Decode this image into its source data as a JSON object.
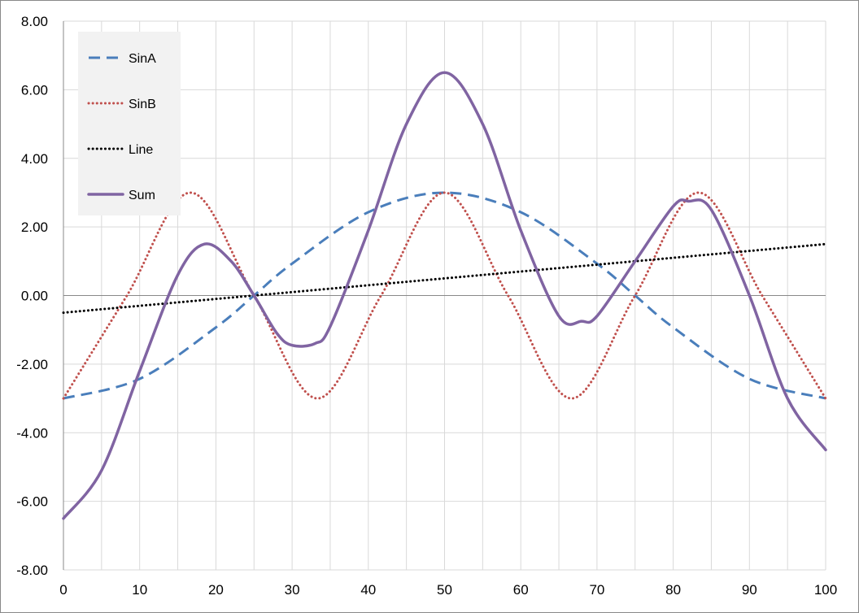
{
  "chart_data": {
    "type": "line",
    "x_range": [
      0,
      100
    ],
    "ylim": [
      -8,
      8
    ],
    "x_ticks": [
      0,
      10,
      20,
      30,
      40,
      50,
      60,
      70,
      80,
      90,
      100
    ],
    "x_tick_labels": [
      "0",
      "10",
      "20",
      "30",
      "40",
      "50",
      "60",
      "70",
      "80",
      "90",
      "100"
    ],
    "y_ticks": [
      8,
      6,
      4,
      2,
      0,
      -2,
      -4,
      -6,
      -8
    ],
    "y_tick_labels": [
      "8.00",
      "6.00",
      "4.00",
      "2.00",
      "0.00",
      "-2.00",
      "-4.00",
      "-6.00",
      "-8.00"
    ],
    "grid": {
      "major_x": true,
      "major_y": true
    },
    "legend_position": "top-left",
    "series": [
      {
        "name": "SinA",
        "color": "#4a7ebb",
        "style": "dashed",
        "x": [
          0,
          10,
          20,
          25,
          30,
          40,
          50,
          60,
          70,
          75,
          80,
          90,
          100
        ],
        "y": [
          -3.0,
          -2.43,
          -0.93,
          0.0,
          0.93,
          2.43,
          3.0,
          2.43,
          0.93,
          0.0,
          -0.93,
          -2.43,
          -3.0
        ]
      },
      {
        "name": "SinB",
        "color": "#c0504d",
        "style": "dotted",
        "x": [
          0,
          8.33,
          16.67,
          25,
          33.33,
          41.67,
          50,
          58.33,
          66.67,
          75,
          83.33,
          91.67,
          100
        ],
        "y": [
          -3.0,
          0.0,
          3.0,
          0.0,
          -3.0,
          0.0,
          3.0,
          0.0,
          -3.0,
          0.0,
          3.0,
          0.0,
          -3.0
        ]
      },
      {
        "name": "Line",
        "color": "#000000",
        "style": "dotted",
        "x": [
          0,
          25,
          50,
          75,
          100
        ],
        "y": [
          -0.5,
          0.0,
          0.5,
          1.0,
          1.5
        ]
      },
      {
        "name": "Sum",
        "color": "#8064a2",
        "style": "solid",
        "x": [
          0,
          5,
          10,
          15,
          18.5,
          22,
          25,
          28,
          30,
          33,
          35,
          40,
          45,
          50,
          55,
          60,
          65,
          68,
          70,
          75,
          80,
          82,
          85,
          90,
          95,
          100
        ],
        "y": [
          -6.5,
          -5.1,
          -2.2,
          0.6,
          1.5,
          1.0,
          0.0,
          -1.1,
          -1.45,
          -1.4,
          -0.9,
          1.9,
          5.0,
          6.5,
          5.0,
          1.9,
          -0.6,
          -0.75,
          -0.6,
          1.0,
          2.6,
          2.75,
          2.5,
          0.0,
          -3.0,
          -4.5
        ]
      }
    ]
  }
}
